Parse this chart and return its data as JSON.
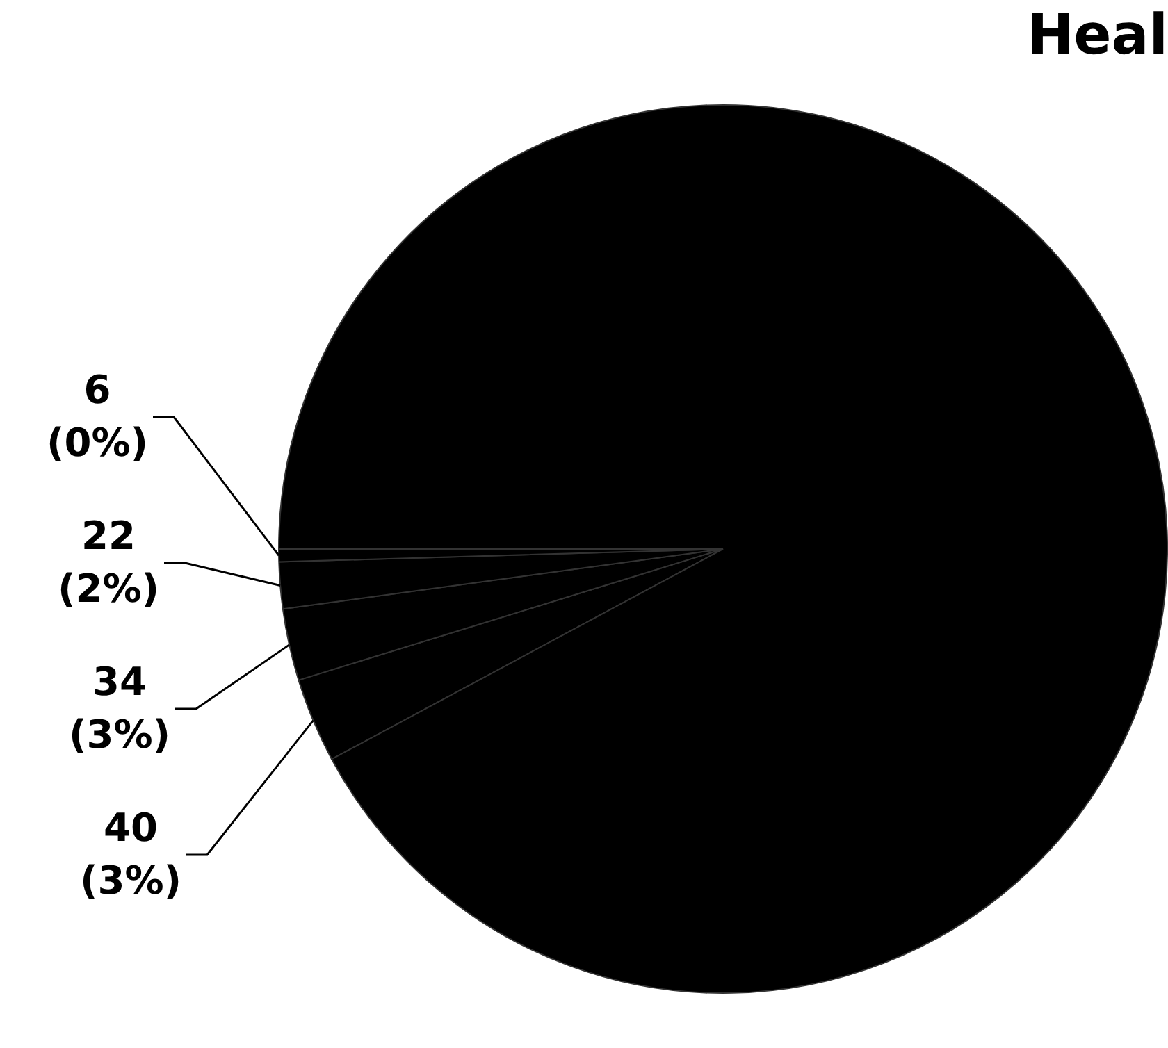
{
  "chart_data": {
    "type": "pie",
    "title": "Heal",
    "categories": [
      null,
      null,
      null,
      null,
      null
    ],
    "values": [
      40,
      34,
      22,
      6,
      1198
    ],
    "colors": [
      "#000000",
      "#000000",
      "#000000",
      "#000000",
      "#000000"
    ],
    "value_labels": [
      "40 (3%)",
      "34 (3%)",
      "22 (2%)",
      "6 (0%)",
      null
    ],
    "legend": false
  }
}
